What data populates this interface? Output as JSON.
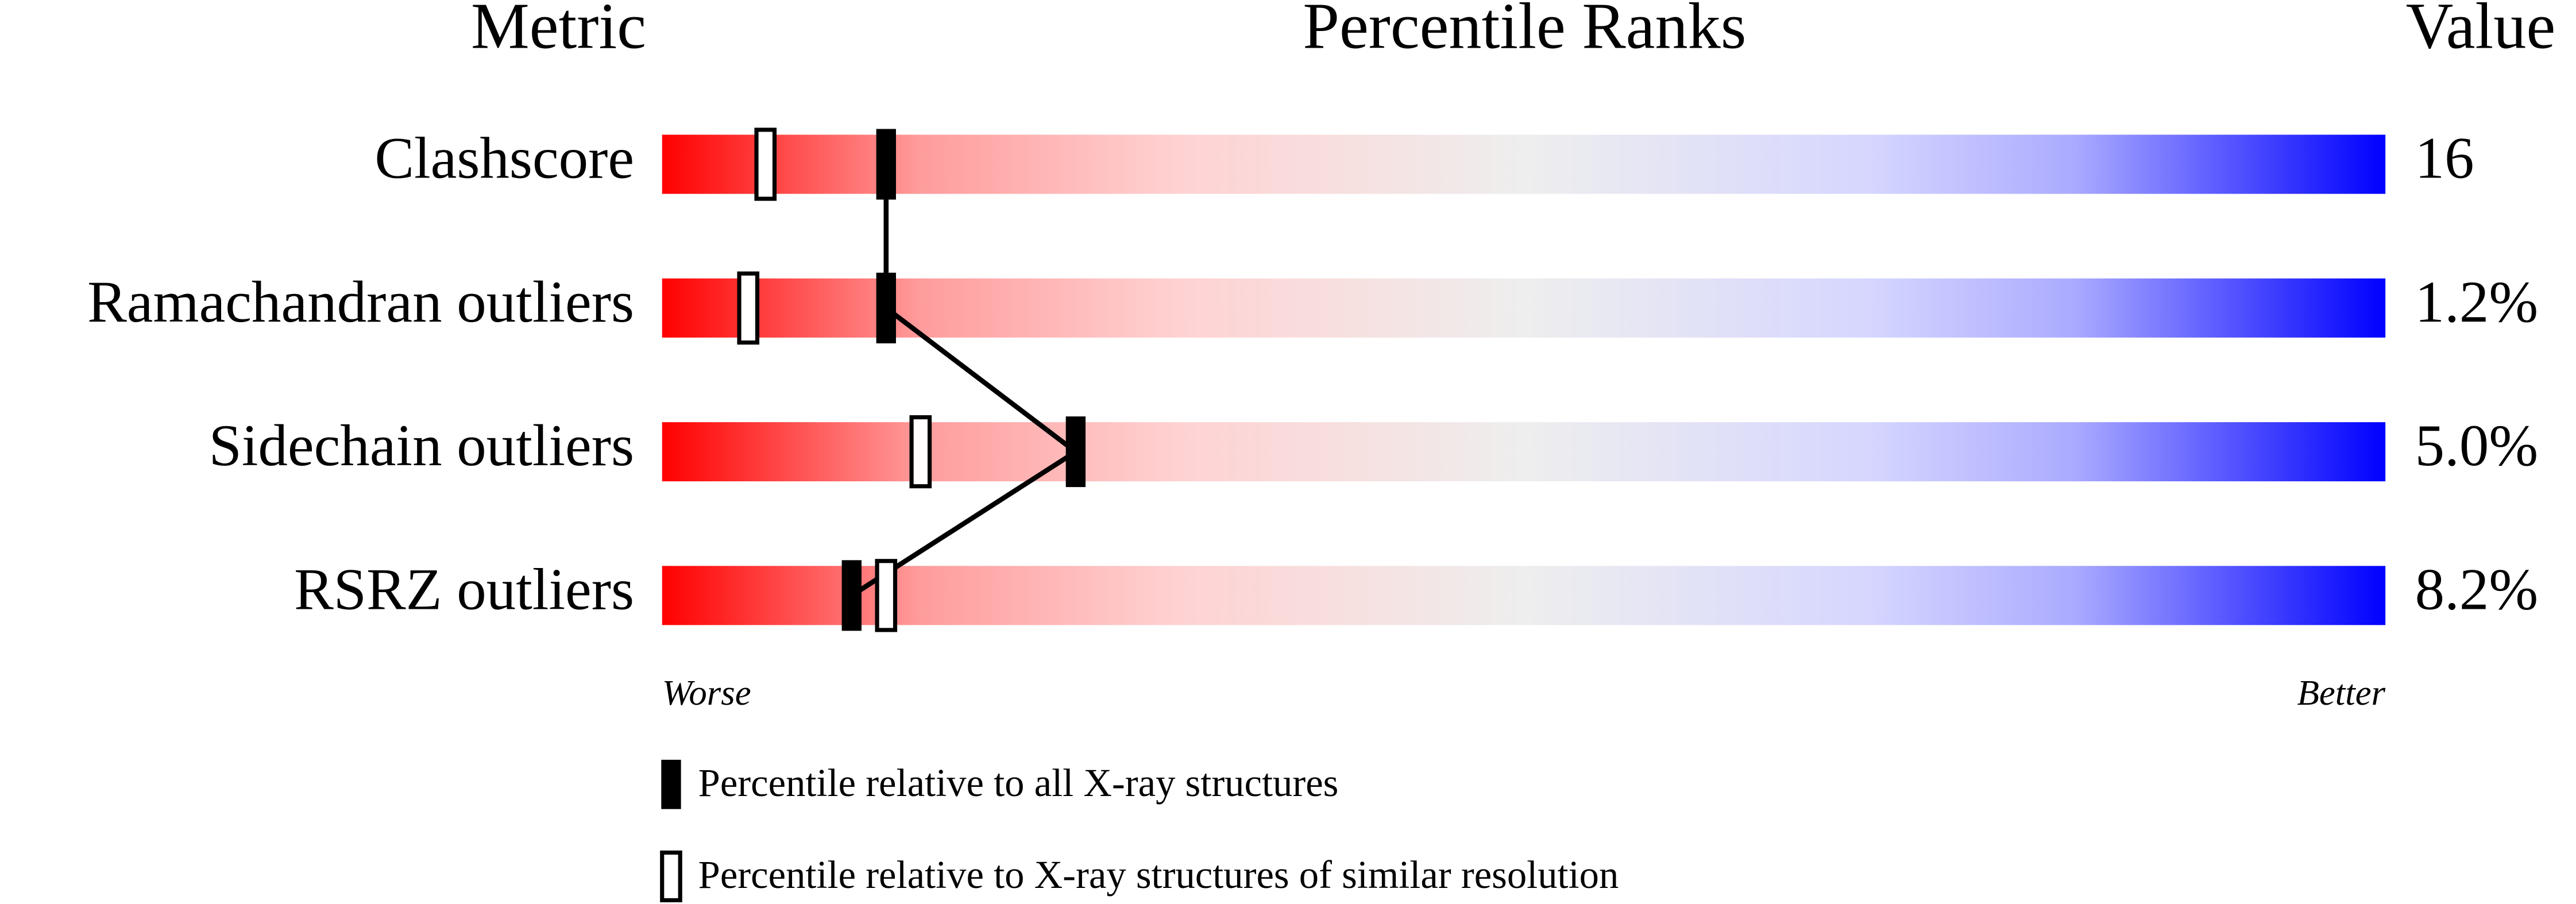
{
  "chart_data": {
    "type": "percentile-slider",
    "headers": {
      "metric": "Metric",
      "ranks": "Percentile Ranks",
      "value": "Value"
    },
    "categories": [
      "Clashscore",
      "Ramachandran outliers",
      "Sidechain outliers",
      "RSRZ outliers"
    ],
    "values": [
      "16",
      "1.2%",
      "5.0%",
      "8.2%"
    ],
    "series": [
      {
        "name": "Percentile relative to all X-ray structures",
        "color": "#000000",
        "values": [
          13,
          13,
          24,
          11
        ]
      },
      {
        "name": "Percentile relative to X-ray structures of similar resolution",
        "color": "#ffffff",
        "values": [
          6,
          5,
          15,
          13
        ]
      }
    ],
    "xlim": [
      0,
      100
    ],
    "axis_ends": [
      "Worse",
      "Better"
    ]
  }
}
